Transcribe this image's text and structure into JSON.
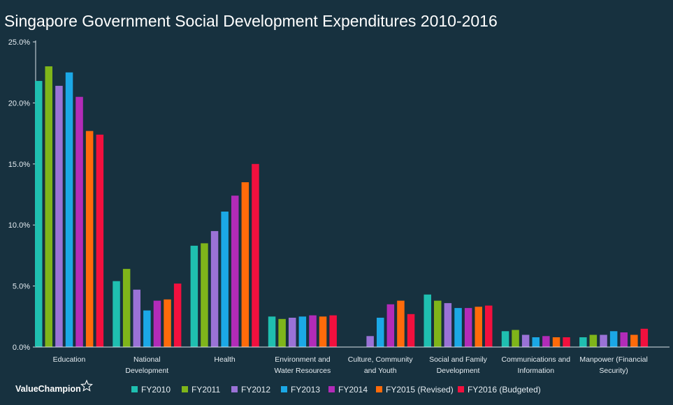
{
  "brand": "ValueChampion",
  "colors": {
    "background": "#17313f",
    "axis": "#d9e2e8",
    "series": [
      "#1fbfb0",
      "#7fb51a",
      "#9a72d6",
      "#1ba8e6",
      "#b22bb8",
      "#ff6b0a",
      "#f2103e"
    ]
  },
  "chart_data": {
    "type": "bar",
    "title": "Singapore Government Social Development Expenditures 2010-2016",
    "xlabel": "",
    "ylabel": "",
    "ylim": [
      0,
      25
    ],
    "yticks": [
      0,
      5,
      10,
      15,
      20,
      25
    ],
    "ytick_labels": [
      "0.0%",
      "5.0%",
      "10.0%",
      "15.0%",
      "20.0%",
      "25.0%"
    ],
    "grid": false,
    "legend_position": "bottom",
    "categories": [
      [
        "Education"
      ],
      [
        "National",
        "Development"
      ],
      [
        "Health"
      ],
      [
        "Environment and",
        "Water Resources"
      ],
      [
        "Culture, Community",
        "and Youth"
      ],
      [
        "Social and Family",
        "Development"
      ],
      [
        "Communications and",
        "Information"
      ],
      [
        "Manpower (Financial",
        "Security)"
      ]
    ],
    "series": [
      {
        "name": "FY2010",
        "values": [
          21.8,
          5.4,
          8.3,
          2.5,
          0,
          4.3,
          1.3,
          0.8
        ]
      },
      {
        "name": "FY2011",
        "values": [
          23.0,
          6.4,
          8.5,
          2.3,
          0,
          3.8,
          1.4,
          1.0
        ]
      },
      {
        "name": "FY2012",
        "values": [
          21.4,
          4.7,
          9.5,
          2.4,
          0.9,
          3.6,
          1.0,
          1.0
        ]
      },
      {
        "name": "FY2013",
        "values": [
          22.5,
          3.0,
          11.1,
          2.5,
          2.4,
          3.2,
          0.8,
          1.3
        ]
      },
      {
        "name": "FY2014",
        "values": [
          20.5,
          3.8,
          12.4,
          2.6,
          3.5,
          3.2,
          0.9,
          1.2
        ]
      },
      {
        "name": "FY2015 (Revised)",
        "values": [
          17.7,
          3.9,
          13.5,
          2.5,
          3.8,
          3.3,
          0.8,
          1.0
        ]
      },
      {
        "name": "FY2016 (Budgeted)",
        "values": [
          17.4,
          5.2,
          15.0,
          2.6,
          2.7,
          3.4,
          0.8,
          1.5
        ]
      }
    ]
  }
}
